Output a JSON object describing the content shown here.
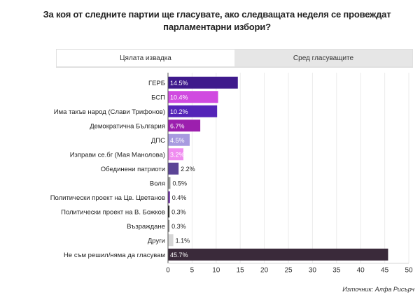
{
  "title": "За коя от следните партии ще гласувате, ако следващата неделя се провеждат парламентарни избори?",
  "tabs": [
    {
      "label": "Цялата извадка",
      "active": true
    },
    {
      "label": "Сред гласуващите",
      "active": false
    }
  ],
  "source": "Източник: Алфа Рисърч",
  "chart_data": {
    "type": "bar",
    "orientation": "horizontal",
    "categories": [
      "ГЕРБ",
      "БСП",
      "Има такъв народ (Слави Трифонов)",
      "Демократична България",
      "ДПС",
      "Изправи се.бг (Мая Манолова)",
      "Обединени патриоти",
      "Воля",
      "Политически проект на Цв. Цветанов",
      "Политически проект на В. Божков",
      "Възраждане",
      "Други",
      "Не съм решил/няма да гласувам"
    ],
    "values": [
      14.5,
      10.4,
      10.2,
      6.7,
      4.5,
      3.2,
      2.2,
      0.5,
      0.4,
      0.3,
      0.3,
      1.1,
      45.7
    ],
    "value_labels": [
      "14.5%",
      "10.4%",
      "10.2%",
      "6.7%",
      "4.5%",
      "3.2%",
      "2.2%",
      "0.5%",
      "0.4%",
      "0.3%",
      "0.3%",
      "1.1%",
      "45.7%"
    ],
    "colors": [
      "#3f1a8c",
      "#d04ae0",
      "#5424b8",
      "#9c1fae",
      "#a89ae0",
      "#f08cf0",
      "#5b4496",
      "#9a9a9a",
      "#6a2aa0",
      "#111111",
      "#8a8a8a",
      "#d6d6d6",
      "#3a2a3a"
    ],
    "label_on_bar": [
      true,
      true,
      true,
      true,
      true,
      true,
      false,
      false,
      false,
      false,
      false,
      false,
      true
    ],
    "xlim": [
      0,
      50
    ],
    "xticks": [
      0,
      5,
      10,
      15,
      20,
      25,
      30,
      35,
      40,
      45,
      50
    ],
    "grid": true
  }
}
